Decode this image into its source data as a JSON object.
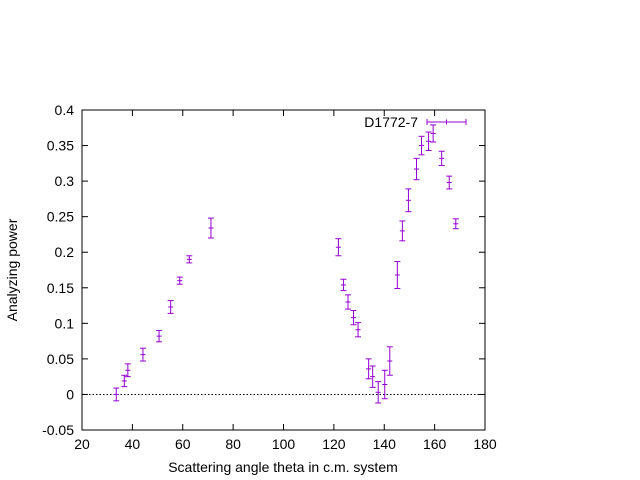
{
  "chart_data": {
    "type": "scatter",
    "xlabel": "Scattering angle theta in c.m. system",
    "ylabel": "Analyzing power",
    "xlim": [
      20,
      180
    ],
    "ylim": [
      -0.05,
      0.4
    ],
    "xticks": [
      20,
      40,
      60,
      80,
      100,
      120,
      140,
      160,
      180
    ],
    "yticks": [
      -0.05,
      0,
      0.05,
      0.1,
      0.15,
      0.2,
      0.25,
      0.3,
      0.35,
      0.4
    ],
    "xtick_labels": [
      "20",
      "40",
      "60",
      "80",
      "100",
      "120",
      "140",
      "160",
      "180"
    ],
    "ytick_labels": [
      "-0.05",
      "0",
      "0.05",
      "0.1",
      "0.15",
      "0.2",
      "0.25",
      "0.3",
      "0.35",
      "0.4"
    ],
    "grid": false,
    "zero_line": true,
    "legend_placement": "top-right",
    "series": [
      {
        "name": "D1772-7",
        "color": "#9400d3",
        "marker": "errorbar",
        "points": [
          {
            "x": 33.6,
            "y": 0.0,
            "yerr": 0.009
          },
          {
            "x": 36.8,
            "y": 0.019,
            "yerr": 0.008
          },
          {
            "x": 38.2,
            "y": 0.034,
            "yerr": 0.009
          },
          {
            "x": 44.2,
            "y": 0.056,
            "yerr": 0.009
          },
          {
            "x": 50.6,
            "y": 0.082,
            "yerr": 0.008
          },
          {
            "x": 55.2,
            "y": 0.123,
            "yerr": 0.009
          },
          {
            "x": 58.8,
            "y": 0.16,
            "yerr": 0.005
          },
          {
            "x": 62.6,
            "y": 0.19,
            "yerr": 0.005
          },
          {
            "x": 71.2,
            "y": 0.234,
            "yerr": 0.014
          },
          {
            "x": 121.8,
            "y": 0.207,
            "yerr": 0.012
          },
          {
            "x": 123.8,
            "y": 0.154,
            "yerr": 0.008
          },
          {
            "x": 125.6,
            "y": 0.13,
            "yerr": 0.01
          },
          {
            "x": 127.8,
            "y": 0.108,
            "yerr": 0.01
          },
          {
            "x": 129.6,
            "y": 0.091,
            "yerr": 0.01
          },
          {
            "x": 133.8,
            "y": 0.036,
            "yerr": 0.014
          },
          {
            "x": 135.4,
            "y": 0.025,
            "yerr": 0.015
          },
          {
            "x": 137.6,
            "y": 0.003,
            "yerr": 0.015
          },
          {
            "x": 140.2,
            "y": 0.014,
            "yerr": 0.02
          },
          {
            "x": 142.2,
            "y": 0.047,
            "yerr": 0.02
          },
          {
            "x": 145.2,
            "y": 0.168,
            "yerr": 0.019
          },
          {
            "x": 147.2,
            "y": 0.23,
            "yerr": 0.014
          },
          {
            "x": 149.6,
            "y": 0.273,
            "yerr": 0.016
          },
          {
            "x": 152.8,
            "y": 0.317,
            "yerr": 0.015
          },
          {
            "x": 154.8,
            "y": 0.35,
            "yerr": 0.013
          },
          {
            "x": 157.6,
            "y": 0.356,
            "yerr": 0.013
          },
          {
            "x": 159.4,
            "y": 0.367,
            "yerr": 0.012
          },
          {
            "x": 162.8,
            "y": 0.332,
            "yerr": 0.01
          },
          {
            "x": 165.8,
            "y": 0.298,
            "yerr": 0.009
          },
          {
            "x": 168.4,
            "y": 0.24,
            "yerr": 0.007
          }
        ]
      }
    ]
  }
}
